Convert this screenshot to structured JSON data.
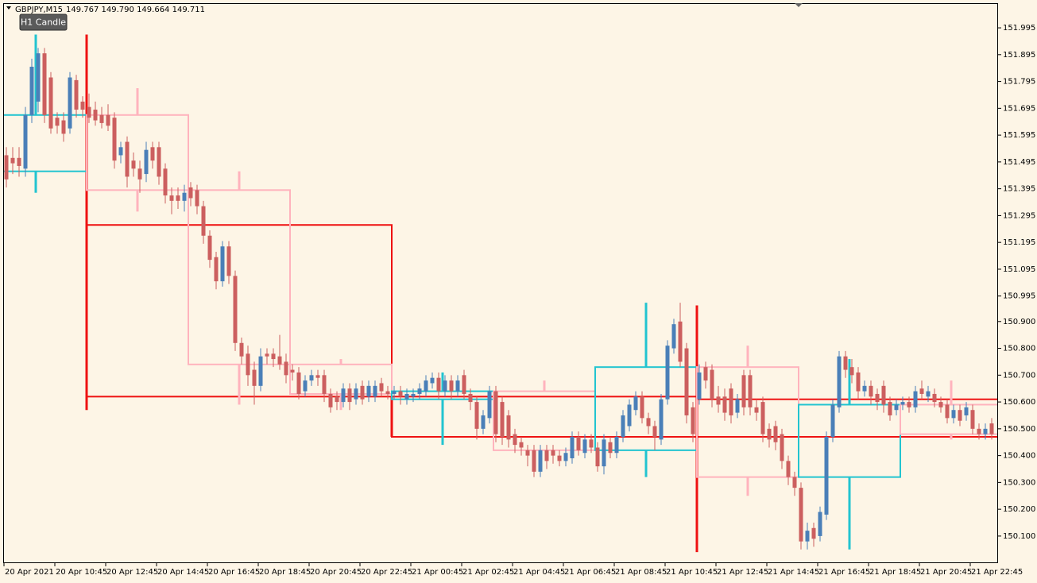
{
  "header": {
    "symbol": "GBPJPY,M15",
    "quote": "149.767 149.790 149.664 149.711",
    "button": "H1 Candle"
  },
  "chart_data": {
    "type": "candlestick",
    "categories": [
      "20 Apr 2021",
      null,
      null,
      null,
      null,
      null,
      null,
      null,
      "20 Apr 10:45",
      null,
      null,
      null,
      null,
      null,
      null,
      null,
      "20 Apr 12:45",
      null,
      null,
      null,
      null,
      null,
      null,
      null,
      "20 Apr 14:45",
      null,
      null,
      null,
      null,
      null,
      null,
      null,
      "20 Apr 16:45",
      null,
      null,
      null,
      null,
      null,
      null,
      null,
      "20 Apr 18:45",
      null,
      null,
      null,
      null,
      null,
      null,
      null,
      "20 Apr 20:45",
      null,
      null,
      null,
      null,
      null,
      null,
      null,
      "20 Apr 22:45",
      null,
      null,
      null,
      null,
      null,
      null,
      null,
      "21 Apr 00:45",
      null,
      null,
      null,
      null,
      null,
      null,
      null,
      "21 Apr 02:45",
      null,
      null,
      null,
      null,
      null,
      null,
      null,
      "21 Apr 04:45",
      null,
      null,
      null,
      null,
      null,
      null,
      null,
      "21 Apr 06:45",
      null,
      null,
      null,
      null,
      null,
      null,
      null,
      "21 Apr 08:45",
      null,
      null,
      null,
      null,
      null,
      null,
      null,
      "21 Apr 10:45",
      null,
      null,
      null,
      null,
      null,
      null,
      null,
      "21 Apr 12:45",
      null,
      null,
      null,
      null,
      null,
      null,
      null,
      "21 Apr 14:45",
      null,
      null,
      null,
      null,
      null,
      null,
      null,
      "21 Apr 16:45",
      null,
      null,
      null,
      null,
      null,
      null,
      null,
      "21 Apr 18:45",
      null,
      null,
      null,
      null,
      null,
      null,
      null,
      "21 Apr 20:45",
      null,
      null,
      null,
      null,
      null,
      null,
      null,
      "21 Apr 22:45",
      null,
      null,
      null
    ],
    "ohlc": [
      [
        151.52,
        151.55,
        151.4,
        151.43
      ],
      [
        151.51,
        151.55,
        151.45,
        151.49
      ],
      [
        151.51,
        151.55,
        151.44,
        151.48
      ],
      [
        151.47,
        151.7,
        151.44,
        151.67
      ],
      [
        151.67,
        151.88,
        151.64,
        151.85
      ],
      [
        151.72,
        151.92,
        151.68,
        151.9
      ],
      [
        151.9,
        151.92,
        151.64,
        151.67
      ],
      [
        151.81,
        151.83,
        151.6,
        151.62
      ],
      [
        151.66,
        151.68,
        151.6,
        151.63
      ],
      [
        151.65,
        151.68,
        151.57,
        151.6
      ],
      [
        151.62,
        151.83,
        151.6,
        151.81
      ],
      [
        151.8,
        151.82,
        151.66,
        151.69
      ],
      [
        151.72,
        151.74,
        151.66,
        151.69
      ],
      [
        151.7,
        151.75,
        151.64,
        151.66
      ],
      [
        151.69,
        151.72,
        151.63,
        151.65
      ],
      [
        151.67,
        151.7,
        151.62,
        151.64
      ],
      [
        151.67,
        151.71,
        151.61,
        151.63
      ],
      [
        151.66,
        151.68,
        151.47,
        151.5
      ],
      [
        151.52,
        151.57,
        151.49,
        151.55
      ],
      [
        151.57,
        151.59,
        151.4,
        151.44
      ],
      [
        151.5,
        151.53,
        151.44,
        151.47
      ],
      [
        151.47,
        151.5,
        151.38,
        151.43
      ],
      [
        151.45,
        151.57,
        151.42,
        151.54
      ],
      [
        151.55,
        151.57,
        151.47,
        151.5
      ],
      [
        151.55,
        151.57,
        151.41,
        151.44
      ],
      [
        151.47,
        151.49,
        151.34,
        151.37
      ],
      [
        151.37,
        151.4,
        151.3,
        151.35
      ],
      [
        151.37,
        151.4,
        151.32,
        151.35
      ],
      [
        151.35,
        151.41,
        151.31,
        151.38
      ],
      [
        151.4,
        151.42,
        151.33,
        151.36
      ],
      [
        151.39,
        151.41,
        151.3,
        151.33
      ],
      [
        151.33,
        151.35,
        151.19,
        151.22
      ],
      [
        151.22,
        151.24,
        151.1,
        151.13
      ],
      [
        151.14,
        151.16,
        151.02,
        151.05
      ],
      [
        151.05,
        151.2,
        151.03,
        151.18
      ],
      [
        151.18,
        151.2,
        151.04,
        151.07
      ],
      [
        151.07,
        151.09,
        150.79,
        150.82
      ],
      [
        150.82,
        150.84,
        150.74,
        150.77
      ],
      [
        150.78,
        150.81,
        150.66,
        150.7
      ],
      [
        150.72,
        150.75,
        150.59,
        150.66
      ],
      [
        150.66,
        150.8,
        150.64,
        150.77
      ],
      [
        150.78,
        150.8,
        150.74,
        150.77
      ],
      [
        150.78,
        150.8,
        150.73,
        150.76
      ],
      [
        150.77,
        150.85,
        150.72,
        150.74
      ],
      [
        150.75,
        150.78,
        150.67,
        150.7
      ],
      [
        150.72,
        150.74,
        150.68,
        150.71
      ],
      [
        150.71,
        150.73,
        150.61,
        150.63
      ],
      [
        150.64,
        150.7,
        150.62,
        150.68
      ],
      [
        150.68,
        150.72,
        150.66,
        150.7
      ],
      [
        150.7,
        150.72,
        150.66,
        150.69
      ],
      [
        150.7,
        150.72,
        150.6,
        150.63
      ],
      [
        150.63,
        150.65,
        150.56,
        150.58
      ],
      [
        150.62,
        150.64,
        150.57,
        150.6
      ],
      [
        150.6,
        150.67,
        150.58,
        150.65
      ],
      [
        150.65,
        150.67,
        150.57,
        150.6
      ],
      [
        150.61,
        150.67,
        150.59,
        150.65
      ],
      [
        150.66,
        150.68,
        150.59,
        150.61
      ],
      [
        150.62,
        150.68,
        150.6,
        150.66
      ],
      [
        150.62,
        150.68,
        150.6,
        150.66
      ],
      [
        150.67,
        150.69,
        150.62,
        150.64
      ],
      [
        150.64,
        150.66,
        150.61,
        150.63
      ],
      [
        150.63,
        150.66,
        150.61,
        150.64
      ],
      [
        150.64,
        150.66,
        150.59,
        150.62
      ],
      [
        150.61,
        150.65,
        150.59,
        150.63
      ],
      [
        150.62,
        150.65,
        150.6,
        150.63
      ],
      [
        150.63,
        150.67,
        150.61,
        150.65
      ],
      [
        150.64,
        150.7,
        150.62,
        150.68
      ],
      [
        150.67,
        150.71,
        150.65,
        150.69
      ],
      [
        150.69,
        150.71,
        150.61,
        150.64
      ],
      [
        150.64,
        150.7,
        150.62,
        150.68
      ],
      [
        150.68,
        150.7,
        150.61,
        150.64
      ],
      [
        150.64,
        150.7,
        150.62,
        150.68
      ],
      [
        150.7,
        150.72,
        150.61,
        150.63
      ],
      [
        150.63,
        150.65,
        150.57,
        150.6
      ],
      [
        150.6,
        150.62,
        150.46,
        150.5
      ],
      [
        150.5,
        150.57,
        150.48,
        150.55
      ],
      [
        150.54,
        150.66,
        150.52,
        150.64
      ],
      [
        150.64,
        150.66,
        150.45,
        150.48
      ],
      [
        150.6,
        150.62,
        150.44,
        150.47
      ],
      [
        150.55,
        150.57,
        150.43,
        150.46
      ],
      [
        150.48,
        150.5,
        150.41,
        150.44
      ],
      [
        150.45,
        150.47,
        150.4,
        150.43
      ],
      [
        150.42,
        150.44,
        150.36,
        150.4
      ],
      [
        150.42,
        150.44,
        150.32,
        150.34
      ],
      [
        150.34,
        150.44,
        150.32,
        150.42
      ],
      [
        150.42,
        150.44,
        150.35,
        150.38
      ],
      [
        150.42,
        150.44,
        150.37,
        150.4
      ],
      [
        150.4,
        150.42,
        150.36,
        150.38
      ],
      [
        150.38,
        150.43,
        150.36,
        150.41
      ],
      [
        150.39,
        150.49,
        150.37,
        150.47
      ],
      [
        150.47,
        150.49,
        150.4,
        150.42
      ],
      [
        150.41,
        150.48,
        150.39,
        150.46
      ],
      [
        150.46,
        150.48,
        150.41,
        150.43
      ],
      [
        150.43,
        150.45,
        150.34,
        150.36
      ],
      [
        150.36,
        150.48,
        150.33,
        150.46
      ],
      [
        150.45,
        150.47,
        150.39,
        150.41
      ],
      [
        150.41,
        150.49,
        150.39,
        150.47
      ],
      [
        150.47,
        150.57,
        150.45,
        150.55
      ],
      [
        150.51,
        150.61,
        150.49,
        150.59
      ],
      [
        150.57,
        150.64,
        150.55,
        150.62
      ],
      [
        150.62,
        150.64,
        150.52,
        150.54
      ],
      [
        150.54,
        150.56,
        150.48,
        150.51
      ],
      [
        150.51,
        150.53,
        150.42,
        150.47
      ],
      [
        150.46,
        150.63,
        150.44,
        150.61
      ],
      [
        150.61,
        150.83,
        150.59,
        150.81
      ],
      [
        150.8,
        150.91,
        150.78,
        150.89
      ],
      [
        150.9,
        150.97,
        150.73,
        150.75
      ],
      [
        150.8,
        150.82,
        150.52,
        150.55
      ],
      [
        150.58,
        150.6,
        150.45,
        150.48
      ],
      [
        150.61,
        150.74,
        150.59,
        150.71
      ],
      [
        150.73,
        150.75,
        150.65,
        150.68
      ],
      [
        150.72,
        150.74,
        150.58,
        150.61
      ],
      [
        150.62,
        150.66,
        150.56,
        150.59
      ],
      [
        150.62,
        150.65,
        150.53,
        150.56
      ],
      [
        150.65,
        150.67,
        150.52,
        150.55
      ],
      [
        150.56,
        150.63,
        150.54,
        150.61
      ],
      [
        150.7,
        150.72,
        150.55,
        150.58
      ],
      [
        150.7,
        150.72,
        150.55,
        150.58
      ],
      [
        150.58,
        150.61,
        150.53,
        150.56
      ],
      [
        150.6,
        150.62,
        150.45,
        150.48
      ],
      [
        150.5,
        150.52,
        150.43,
        150.46
      ],
      [
        150.51,
        150.53,
        150.42,
        150.45
      ],
      [
        150.48,
        150.5,
        150.35,
        150.38
      ],
      [
        150.38,
        150.4,
        150.29,
        150.32
      ],
      [
        150.32,
        150.34,
        150.25,
        150.28
      ],
      [
        150.28,
        150.3,
        150.05,
        150.08
      ],
      [
        150.08,
        150.15,
        150.05,
        150.12
      ],
      [
        150.13,
        150.15,
        150.06,
        150.09
      ],
      [
        150.1,
        150.21,
        150.08,
        150.19
      ],
      [
        150.18,
        150.49,
        150.16,
        150.47
      ],
      [
        150.47,
        150.61,
        150.45,
        150.59
      ],
      [
        150.58,
        150.79,
        150.56,
        150.77
      ],
      [
        150.77,
        150.79,
        150.69,
        150.72
      ],
      [
        150.73,
        150.76,
        150.67,
        150.7
      ],
      [
        150.71,
        150.73,
        150.61,
        150.64
      ],
      [
        150.64,
        150.68,
        150.62,
        150.66
      ],
      [
        150.66,
        150.68,
        150.59,
        150.62
      ],
      [
        150.63,
        150.65,
        150.57,
        150.6
      ],
      [
        150.66,
        150.68,
        150.56,
        150.59
      ],
      [
        150.6,
        150.62,
        150.53,
        150.55
      ],
      [
        150.57,
        150.61,
        150.55,
        150.59
      ],
      [
        150.59,
        150.62,
        150.57,
        150.6
      ],
      [
        150.6,
        150.62,
        150.56,
        150.58
      ],
      [
        150.58,
        150.66,
        150.56,
        150.64
      ],
      [
        150.65,
        150.68,
        150.61,
        150.63
      ],
      [
        150.62,
        150.66,
        150.6,
        150.64
      ],
      [
        150.63,
        150.65,
        150.58,
        150.6
      ],
      [
        150.6,
        150.62,
        150.56,
        150.58
      ],
      [
        150.59,
        150.61,
        150.52,
        150.54
      ],
      [
        150.54,
        150.59,
        150.52,
        150.57
      ],
      [
        150.57,
        150.59,
        150.51,
        150.53
      ],
      [
        150.55,
        150.6,
        150.53,
        150.58
      ],
      [
        150.57,
        150.59,
        150.48,
        150.5
      ],
      [
        150.5,
        150.52,
        150.46,
        150.48
      ],
      [
        150.48,
        150.52,
        150.46,
        150.5
      ],
      [
        150.52,
        150.54,
        150.46,
        150.48
      ]
    ],
    "bull_color": "#4a7fb8",
    "bear_color": "#cc5f5f",
    "h4_candles": [
      {
        "open": 151.46,
        "high": 151.97,
        "low": 151.38,
        "close": 151.67
      },
      {
        "open": 151.67,
        "high": 151.77,
        "low": 151.31,
        "close": 151.39
      },
      {
        "open": 151.39,
        "high": 151.46,
        "low": 150.59,
        "close": 150.74
      },
      {
        "open": 150.74,
        "high": 150.76,
        "low": 150.57,
        "close": 150.63
      },
      {
        "open": 150.61,
        "high": 150.71,
        "low": 150.44,
        "close": 150.64
      },
      {
        "open": 150.64,
        "high": 150.68,
        "low": 150.42,
        "close": 150.42
      },
      {
        "open": 150.42,
        "high": 150.97,
        "low": 150.32,
        "close": 150.73
      },
      {
        "open": 150.73,
        "high": 150.81,
        "low": 150.25,
        "close": 150.32
      },
      {
        "open": 150.32,
        "high": 150.76,
        "low": 150.05,
        "close": 150.59
      },
      {
        "open": 150.59,
        "high": 150.68,
        "low": 150.46,
        "close": 150.48
      }
    ],
    "h4_bull_color": "#22c4d0",
    "h4_bear_color": "#ffb3bd",
    "h12_candles": [
      {
        "open": 151.26,
        "high": 151.97,
        "low": 150.57,
        "close": 150.62
      },
      {
        "open": 150.62,
        "high": 150.62,
        "low": 150.47,
        "close": 150.47
      },
      {
        "open": 150.61,
        "high": 150.96,
        "low": 150.04,
        "close": 150.47
      }
    ],
    "h12_color": "#ee1111",
    "ylim": [
      150.002,
      152.084
    ],
    "yticks": [
      151.995,
      151.895,
      151.795,
      151.695,
      151.595,
      151.495,
      151.395,
      151.295,
      151.195,
      151.095,
      150.995,
      {
        "value": 150.9,
        "label": "150.900"
      },
      {
        "value": 150.8,
        "label": "150.800"
      },
      {
        "value": 150.7,
        "label": "150.700"
      },
      {
        "value": 150.6,
        "label": "150.600"
      },
      {
        "value": 150.5,
        "label": "150.500"
      },
      {
        "value": 150.4,
        "label": "150.400"
      },
      {
        "value": 150.3,
        "label": "150.300"
      },
      {
        "value": 150.2,
        "label": "150.200"
      },
      {
        "value": 150.1,
        "label": "150.100"
      }
    ]
  }
}
